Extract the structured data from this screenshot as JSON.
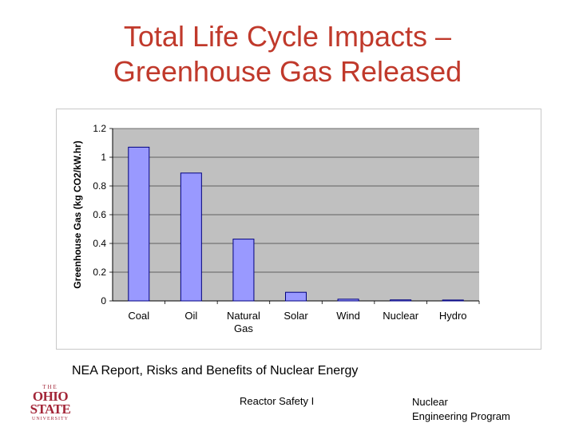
{
  "slide": {
    "title_line1": "Total Life Cycle Impacts –",
    "title_line2": "Greenhouse Gas Released",
    "source": "NEA Report, Risks and Benefits of Nuclear Energy",
    "footer_center": "Reactor Safety I",
    "footer_right_line1": "Nuclear",
    "footer_right_line2": "Engineering Program",
    "logo": {
      "line1": "THE",
      "line2": "OHIO",
      "line3": "STATE",
      "line4": "UNIVERSITY"
    }
  },
  "colors": {
    "title": "#C0392B",
    "bar_fill": "#9999FF",
    "bar_stroke": "#000080",
    "plot_bg": "#C0C0C0",
    "logo": "#A32638"
  },
  "chart_data": {
    "type": "bar",
    "categories": [
      "Coal",
      "Oil",
      "Natural Gas",
      "Solar",
      "Wind",
      "Nuclear",
      "Hydro"
    ],
    "category_label_lines": [
      [
        "Coal"
      ],
      [
        "Oil"
      ],
      [
        "Natural",
        "Gas"
      ],
      [
        "Solar"
      ],
      [
        "Wind"
      ],
      [
        "Nuclear"
      ],
      [
        "Hydro"
      ]
    ],
    "values": [
      1.07,
      0.89,
      0.43,
      0.06,
      0.012,
      0.007,
      0.006
    ],
    "xlabel": "",
    "ylabel": "Greenhouse Gas (kg CO2/kW.hr)",
    "ylim": [
      0,
      1.2
    ],
    "yticks": [
      0,
      0.2,
      0.4,
      0.6,
      0.8,
      1,
      1.2
    ],
    "ytick_labels": [
      "0",
      "0.2",
      "0.4",
      "0.6",
      "0.8",
      "1",
      "1.2"
    ],
    "grid": true,
    "legend": false
  }
}
